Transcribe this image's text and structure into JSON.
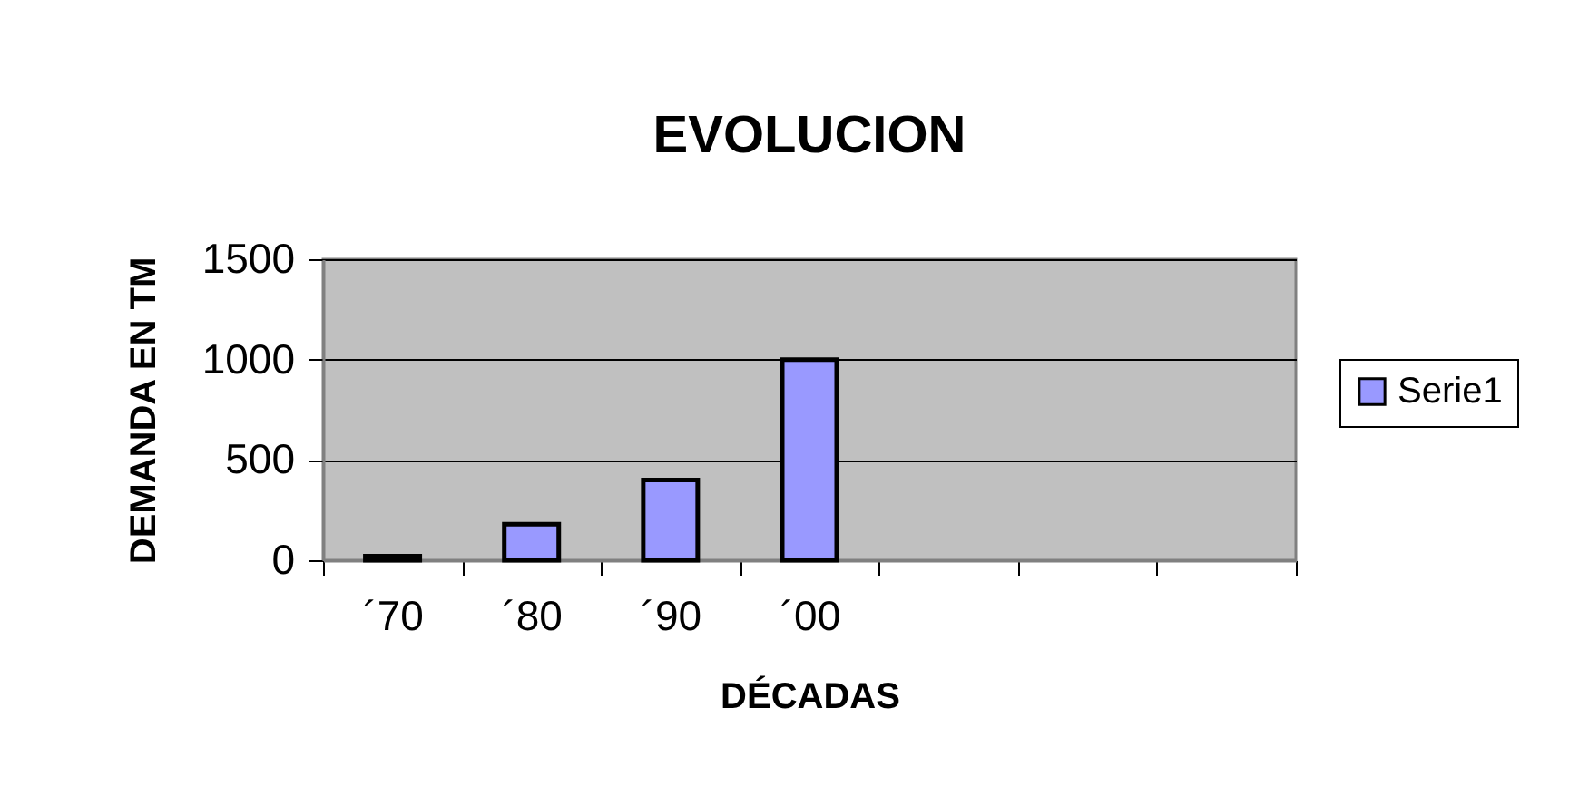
{
  "chart_data": {
    "type": "bar",
    "title": "EVOLUCION",
    "xlabel": "DÉCADAS",
    "ylabel": "DEMANDA EN TM",
    "categories": [
      "´70",
      "´80",
      "´90",
      "´00",
      null,
      null,
      null
    ],
    "series": [
      {
        "name": "Serie1",
        "color": "#9999ff",
        "values": [
          20,
          180,
          400,
          1000,
          null,
          null,
          null
        ]
      }
    ],
    "ylim": [
      0,
      1500
    ],
    "yticks": [
      0,
      500,
      1000,
      1500
    ],
    "grid": "y",
    "legend": "right"
  }
}
